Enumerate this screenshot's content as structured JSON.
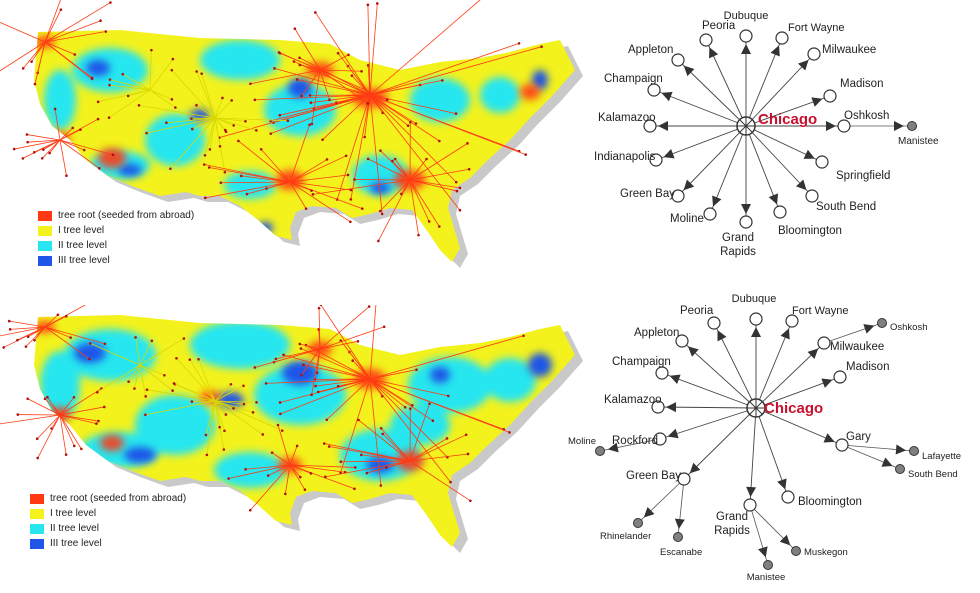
{
  "legend": {
    "items": [
      {
        "label": "tree root (seeded from abroad)",
        "color": "#ff3a12"
      },
      {
        "label": "I tree  level",
        "color": "#f3f21c"
      },
      {
        "label": "II tree  level",
        "color": "#27e6ef"
      },
      {
        "label": "III tree  level",
        "color": "#1f55e8"
      }
    ]
  },
  "colors": {
    "root": "#ff3a12",
    "level1": "#f3f21c",
    "level2": "#27e6ef",
    "level3": "#1f55e8",
    "hub_label": "#c8102e",
    "terminal_node": "#808080"
  },
  "top_diagram": {
    "hub": "Chicago",
    "spokes": [
      "Dubuque",
      "Fort Wayne",
      "Milwaukee",
      "Madison",
      "Oshkosh",
      "Springfield",
      "South Bend",
      "Bloomington",
      "Grand Rapids",
      "Moline",
      "Green Bay",
      "Indianapolis",
      "Kalamazoo",
      "Champaign",
      "Appleton",
      "Peoria"
    ],
    "secondary": [
      {
        "from": "Oshkosh",
        "to": "Manistee"
      }
    ]
  },
  "bottom_diagram": {
    "hub": "Chicago",
    "spokes": [
      "Dubuque",
      "Fort Wayne",
      "Milwaukee",
      "Madison",
      "Gary",
      "Bloomington",
      "Grand Rapids",
      "Green Bay",
      "Rockford",
      "Kalamazoo",
      "Champaign",
      "Appleton",
      "Peoria"
    ],
    "secondary": [
      {
        "from": "Milwaukee",
        "to": "Oshkosh"
      },
      {
        "from": "Gary",
        "to": "Lafayette"
      },
      {
        "from": "Gary",
        "to": "South Bend"
      },
      {
        "from": "Grand Rapids",
        "to": "Muskegon"
      },
      {
        "from": "Grand Rapids",
        "to": "Manistee"
      },
      {
        "from": "Green Bay",
        "to": "Rhinelander"
      },
      {
        "from": "Green Bay",
        "to": "Escanabe"
      },
      {
        "from": "Rockford",
        "to": "Moline"
      }
    ]
  }
}
